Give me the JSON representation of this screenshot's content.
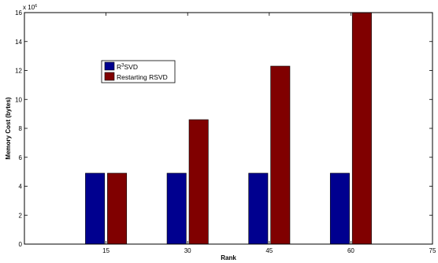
{
  "chart_data": {
    "type": "bar",
    "categories": [
      "15",
      "30",
      "45",
      "60"
    ],
    "x_ticks": [
      "15",
      "30",
      "45",
      "60",
      "75"
    ],
    "xlim": [
      0,
      75
    ],
    "ylim": [
      0,
      16
    ],
    "y_ticks": [
      "0",
      "2",
      "4",
      "6",
      "8",
      "10",
      "12",
      "14",
      "16"
    ],
    "y_multiplier": "x 10",
    "y_multiplier_exponent": "6",
    "xlabel": "Rank",
    "ylabel": "Memory Cost (bytes)",
    "grid": false,
    "legend_position": "upper-left",
    "series": [
      {
        "name": "R",
        "name_superscript": "3",
        "name_suffix": "SVD",
        "color": "#00008f",
        "values": [
          4.9,
          4.9,
          4.9,
          4.9
        ]
      },
      {
        "name": "Restarting RSVD",
        "color": "#800000",
        "values": [
          4.9,
          8.6,
          12.3,
          16.0
        ]
      }
    ]
  }
}
